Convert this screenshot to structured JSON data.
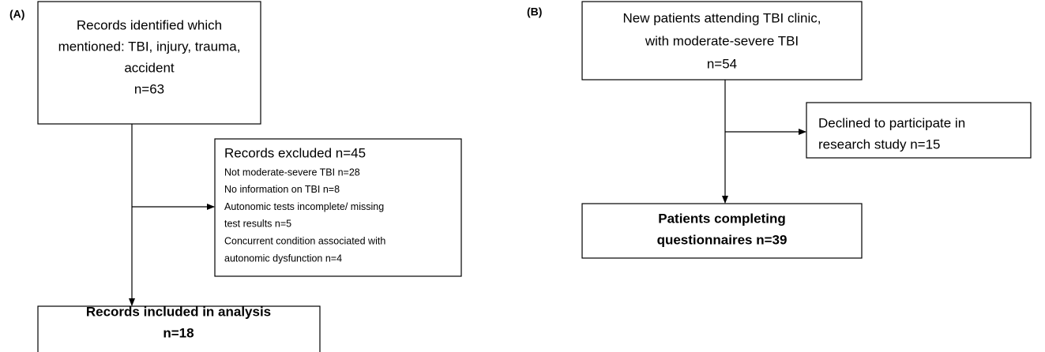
{
  "panel_a": {
    "label": "(A)",
    "identified": {
      "lines": [
        "Records identified which",
        "mentioned: TBI, injury, trauma,",
        "accident",
        "n=63"
      ]
    },
    "excluded": {
      "title": "Records excluded n=45",
      "items": [
        "Not moderate-severe TBI n=28",
        "No information on TBI n=8",
        "Autonomic tests incomplete/ missing",
        "test results n=5",
        "Concurrent condition associated with",
        "autonomic dysfunction n=4"
      ]
    },
    "included": {
      "lines": [
        "Records included in analysis",
        "n=18"
      ]
    }
  },
  "panel_b": {
    "label": "(B)",
    "attending": {
      "lines": [
        "New patients attending TBI clinic,",
        "with moderate-severe TBI",
        "n=54"
      ]
    },
    "declined": {
      "lines": [
        "Declined to participate in",
        "research study n=15"
      ]
    },
    "completing": {
      "lines": [
        "Patients completing",
        "questionnaires n=39"
      ]
    }
  }
}
